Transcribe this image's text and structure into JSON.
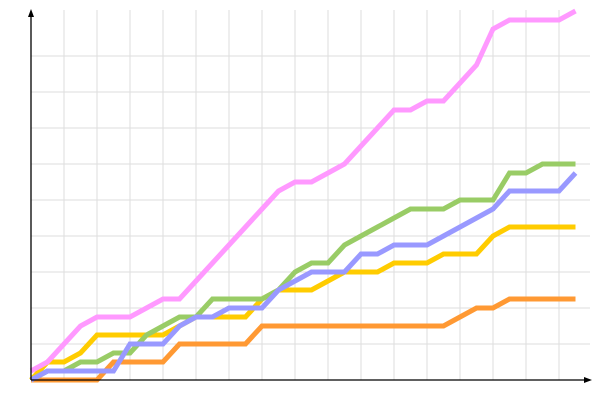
{
  "chart_data": {
    "type": "line",
    "title": "",
    "xlabel": "",
    "ylabel": "",
    "xlim": [
      0,
      34.5
    ],
    "ylim": [
      0,
      102.5
    ],
    "grid": true,
    "legend": "none",
    "x": [
      0,
      1,
      2,
      3,
      4,
      5,
      6,
      7,
      8,
      9,
      10,
      11,
      12,
      13,
      14,
      15,
      16,
      17,
      18,
      19,
      20,
      21,
      22,
      23,
      24,
      25,
      26,
      27,
      28,
      29,
      30,
      31,
      32,
      33
    ],
    "series": [
      {
        "color": "#ffcc00",
        "values": [
          0,
          5,
          5,
          7.5,
          12.5,
          12.5,
          12.5,
          12.5,
          12.5,
          15,
          17.5,
          17.5,
          17.5,
          17.5,
          22.5,
          25,
          25,
          25,
          27.5,
          30,
          30,
          30,
          32.5,
          32.5,
          32.5,
          35,
          35,
          35,
          40,
          42.5,
          42.5,
          42.5,
          42.5,
          42.5
        ]
      },
      {
        "color": "#ff9933",
        "values": [
          0,
          0,
          0,
          0,
          0,
          5,
          5,
          5,
          5,
          10,
          10,
          10,
          10,
          10,
          15,
          15,
          15,
          15,
          15,
          15,
          15,
          15,
          15,
          15,
          15,
          15,
          17.5,
          20,
          20,
          22.5,
          22.5,
          22.5,
          22.5,
          22.5
        ]
      },
      {
        "color": "#99cc66",
        "values": [
          0,
          2.5,
          2.5,
          5,
          5,
          7.5,
          7.5,
          12.5,
          15,
          17.5,
          17.5,
          22.5,
          22.5,
          22.5,
          22.5,
          25,
          30,
          32.5,
          32.5,
          37.5,
          40,
          42.5,
          45,
          47.5,
          47.5,
          47.5,
          50,
          50,
          50,
          57.5,
          57.5,
          60,
          60,
          60
        ]
      },
      {
        "color": "#9999ff",
        "values": [
          0,
          2.5,
          2.5,
          2.5,
          2.5,
          2.5,
          10,
          10,
          10,
          15,
          17.5,
          17.5,
          20,
          20,
          20,
          25,
          27.5,
          30,
          30,
          30,
          35,
          35,
          37.5,
          37.5,
          37.5,
          40,
          42.5,
          45,
          47.5,
          52.5,
          52.5,
          52.5,
          52.5,
          57.5
        ]
      },
      {
        "color": "#ff99ff",
        "values": [
          2.5,
          5,
          10,
          15,
          17.5,
          17.5,
          17.5,
          20,
          22.5,
          22.5,
          27.5,
          32.5,
          37.5,
          42.5,
          47.5,
          52.5,
          55,
          55,
          57.5,
          60,
          65,
          70,
          75,
          75,
          77.5,
          77.5,
          82.5,
          87.5,
          97.5,
          100,
          100,
          100,
          100,
          102.5
        ]
      }
    ]
  }
}
